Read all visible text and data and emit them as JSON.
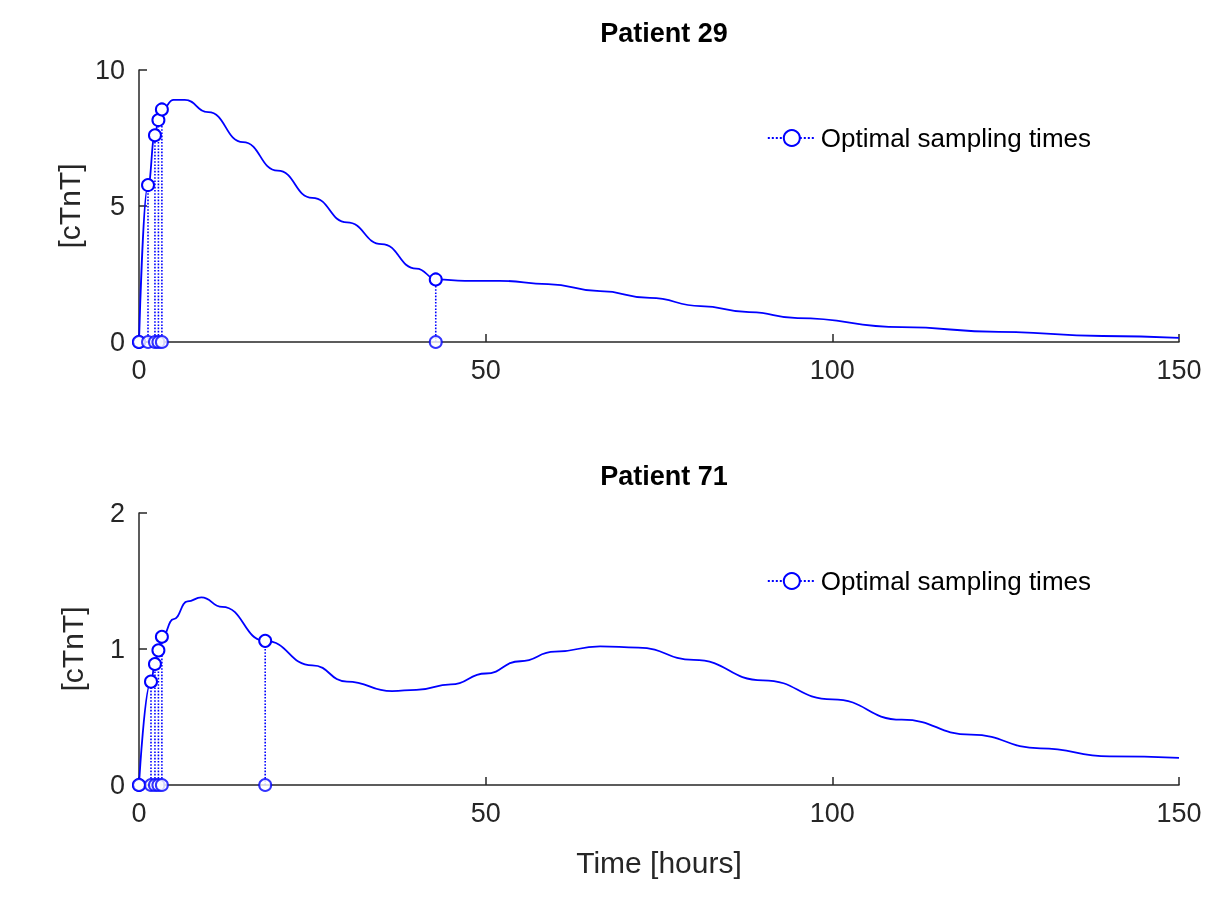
{
  "chart_data": [
    {
      "type": "line",
      "title": "Patient 29",
      "ylabel": "[cTnT]",
      "xlim": [
        0,
        150
      ],
      "xticks": [
        0,
        50,
        100,
        150
      ],
      "ylim": [
        0,
        10
      ],
      "yticks": [
        0,
        5,
        10
      ],
      "grid": false,
      "legend": "top right",
      "series": [
        {
          "type": "line",
          "color": "#0000ff",
          "line_style": "solid",
          "marker": "none",
          "x": [
            0,
            1.3,
            2.3,
            2.8,
            3.3,
            5,
            6.6,
            10,
            15,
            20,
            25,
            30,
            35,
            40,
            43,
            47,
            52,
            59,
            66.5,
            73.7,
            81,
            88,
            95,
            110,
            124,
            139,
            150
          ],
          "values": [
            0,
            5.77,
            7.6,
            8.16,
            8.55,
            8.9,
            8.9,
            8.45,
            7.35,
            6.3,
            5.3,
            4.4,
            3.6,
            2.7,
            2.3,
            2.25,
            2.25,
            2.13,
            1.87,
            1.62,
            1.32,
            1.1,
            0.88,
            0.55,
            0.37,
            0.22,
            0.15
          ]
        },
        {
          "type": "lollipop",
          "name": "Optimal sampling times",
          "color": "#0000ff",
          "line_style": "dotted",
          "marker": "circle",
          "x": [
            0,
            1.3,
            2.3,
            2.8,
            3.3,
            42.8
          ],
          "values": [
            0,
            5.77,
            7.6,
            8.16,
            8.55,
            2.3
          ]
        },
        {
          "type": "scatter",
          "color": "#0000ff",
          "marker": "circle",
          "x": [
            0,
            1.3,
            2.3,
            2.8,
            3.3,
            42.8
          ],
          "values": [
            0,
            0,
            0,
            0,
            0,
            0
          ]
        }
      ]
    },
    {
      "type": "line",
      "title": "Patient 71",
      "ylabel": "[cTnT]",
      "xlabel": "Time [hours]",
      "xlim": [
        0,
        150
      ],
      "xticks": [
        0,
        50,
        100,
        150
      ],
      "ylim": [
        0,
        2
      ],
      "yticks": [
        0,
        1,
        2
      ],
      "grid": false,
      "legend": "top right",
      "series": [
        {
          "type": "line",
          "color": "#0000ff",
          "line_style": "solid",
          "marker": "none",
          "x": [
            0,
            1.73,
            2.3,
            2.8,
            3.3,
            5,
            7,
            9,
            12,
            18.2,
            25,
            30,
            36.5,
            40,
            45,
            50,
            55,
            60,
            66.5,
            72,
            80,
            90,
            100,
            110,
            120,
            130,
            140,
            150
          ],
          "values": [
            0,
            0.76,
            0.89,
            0.99,
            1.09,
            1.22,
            1.35,
            1.38,
            1.31,
            1.06,
            0.88,
            0.76,
            0.69,
            0.7,
            0.74,
            0.82,
            0.91,
            0.98,
            1.02,
            1.01,
            0.92,
            0.77,
            0.63,
            0.48,
            0.37,
            0.27,
            0.21,
            0.2
          ]
        },
        {
          "type": "lollipop",
          "name": "Optimal sampling times",
          "color": "#0000ff",
          "line_style": "dotted",
          "marker": "circle",
          "x": [
            0,
            1.73,
            2.3,
            2.8,
            3.3,
            18.2
          ],
          "values": [
            0,
            0.76,
            0.89,
            0.99,
            1.09,
            1.06
          ]
        },
        {
          "type": "scatter",
          "color": "#0000ff",
          "marker": "circle",
          "x": [
            0,
            1.73,
            2.3,
            2.8,
            3.3,
            18.2
          ],
          "values": [
            0,
            0,
            0,
            0,
            0,
            0
          ]
        }
      ]
    }
  ]
}
